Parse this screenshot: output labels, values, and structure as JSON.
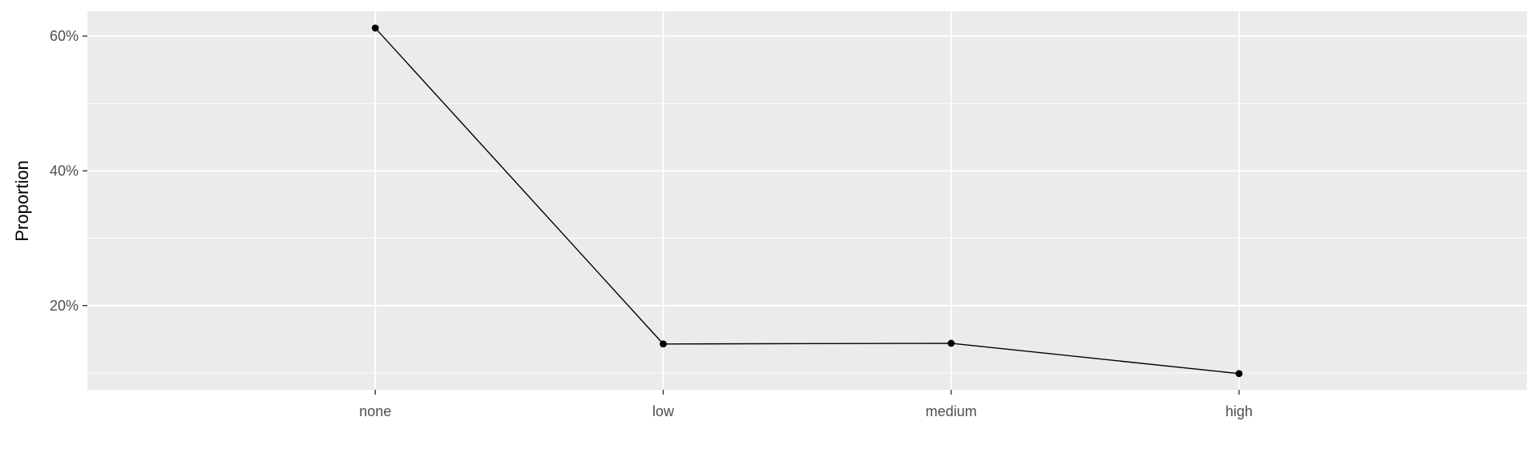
{
  "chart_data": {
    "type": "line",
    "title": "",
    "xlabel": "",
    "ylabel": "Proportion",
    "categories": [
      "none",
      "low",
      "medium",
      "high"
    ],
    "series": [
      {
        "values": [
          0.612,
          0.143,
          0.144,
          0.099
        ]
      }
    ],
    "ylim": [
      0.075,
      0.637
    ],
    "y_ticks": [
      0.2,
      0.4,
      0.6
    ],
    "y_tick_labels": [
      "20%",
      "40%",
      "60%"
    ],
    "grid": true,
    "legend": "none",
    "colors": {
      "panel": "#ebebeb",
      "grid": "#ffffff",
      "line": "#000000",
      "point": "#000000",
      "tick_text": "#4d4d4d"
    }
  }
}
